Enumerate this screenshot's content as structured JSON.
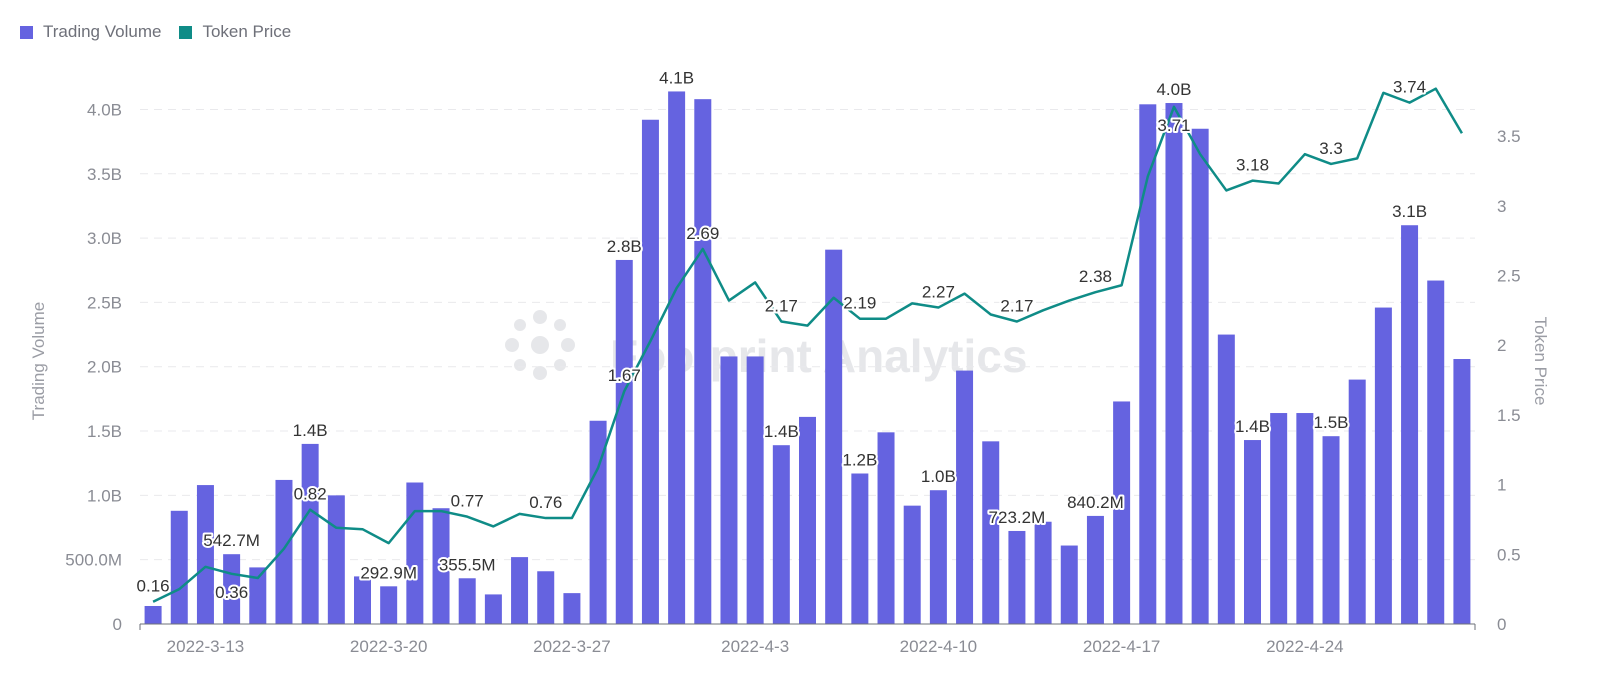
{
  "legend": [
    {
      "label": "Trading Volume",
      "color": "#6563e0"
    },
    {
      "label": "Token Price",
      "color": "#0f8c87"
    }
  ],
  "watermark": "Footprint Analytics",
  "chart_data": {
    "type": "bar+line",
    "x_tick_labels": [
      "2022-3-13",
      "2022-3-20",
      "2022-3-27",
      "2022-4-3",
      "2022-4-10",
      "2022-4-17",
      "2022-4-24"
    ],
    "categories": [
      "2022-3-11",
      "2022-3-12",
      "2022-3-13",
      "2022-3-14",
      "2022-3-15",
      "2022-3-16",
      "2022-3-17",
      "2022-3-18",
      "2022-3-19",
      "2022-3-20",
      "2022-3-21",
      "2022-3-22",
      "2022-3-23",
      "2022-3-24",
      "2022-3-25",
      "2022-3-26",
      "2022-3-27",
      "2022-3-28",
      "2022-3-29",
      "2022-3-30",
      "2022-3-31",
      "2022-4-1",
      "2022-4-2",
      "2022-4-3",
      "2022-4-4",
      "2022-4-5",
      "2022-4-6",
      "2022-4-7",
      "2022-4-8",
      "2022-4-9",
      "2022-4-10",
      "2022-4-11",
      "2022-4-12",
      "2022-4-13",
      "2022-4-14",
      "2022-4-15",
      "2022-4-16",
      "2022-4-17",
      "2022-4-18",
      "2022-4-19",
      "2022-4-20",
      "2022-4-21",
      "2022-4-22",
      "2022-4-23",
      "2022-4-24",
      "2022-4-25",
      "2022-4-26",
      "2022-4-27",
      "2022-4-28",
      "2022-4-29",
      "2022-4-30"
    ],
    "series": [
      {
        "name": "Trading Volume",
        "type": "bar",
        "axis": "left",
        "color": "#6563e0",
        "values": [
          140000000.0,
          880000000.0,
          1080000000.0,
          542700000.0,
          440000000.0,
          1120000000.0,
          1400000000.0,
          1000000000.0,
          370000000.0,
          292900000.0,
          1100000000.0,
          900000000.0,
          355500000.0,
          230000000.0,
          520000000.0,
          410000000.0,
          240000000.0,
          1580000000.0,
          2830000000.0,
          3920000000.0,
          4140000000.0,
          4080000000.0,
          2080000000.0,
          2080000000.0,
          1390000000.0,
          1610000000.0,
          2910000000.0,
          1170000000.0,
          1490000000.0,
          920000000.0,
          1040000000.0,
          1970000000.0,
          1420000000.0,
          723200000.0,
          795000000.0,
          610000000.0,
          840200000.0,
          1730000000.0,
          4040000000.0,
          4050000000.0,
          3850000000.0,
          2250000000.0,
          1430000000.0,
          1640000000.0,
          1640000000.0,
          1460000000.0,
          1900000000.0,
          2460000000.0,
          3100000000.0,
          2670000000.0,
          2060000000.0
        ],
        "data_labels": [
          null,
          null,
          null,
          "542.7M",
          null,
          null,
          "1.4B",
          null,
          null,
          "292.9M",
          null,
          null,
          "355.5M",
          null,
          null,
          null,
          null,
          null,
          "2.8B",
          null,
          "4.1B",
          null,
          null,
          null,
          "1.4B",
          null,
          null,
          "1.2B",
          null,
          null,
          "1.0B",
          null,
          null,
          "723.2M",
          null,
          null,
          "840.2M",
          null,
          null,
          "4.0B",
          null,
          null,
          "1.4B",
          null,
          null,
          "1.5B",
          null,
          null,
          "3.1B",
          null,
          null
        ]
      },
      {
        "name": "Token Price",
        "type": "line",
        "axis": "right",
        "color": "#0f8c87",
        "values": [
          0.16,
          0.25,
          0.41,
          0.36,
          0.33,
          0.54,
          0.82,
          0.69,
          0.68,
          0.58,
          0.81,
          0.81,
          0.77,
          0.7,
          0.79,
          0.76,
          0.76,
          1.12,
          1.67,
          2.03,
          2.41,
          2.69,
          2.32,
          2.45,
          2.17,
          2.14,
          2.34,
          2.19,
          2.19,
          2.3,
          2.27,
          2.37,
          2.22,
          2.17,
          2.25,
          2.32,
          2.38,
          2.43,
          3.21,
          3.71,
          3.37,
          3.11,
          3.18,
          3.16,
          3.37,
          3.3,
          3.34,
          3.81,
          3.74,
          3.84,
          3.52
        ],
        "data_labels": [
          "0.16",
          null,
          null,
          "0.36",
          null,
          null,
          "0.82",
          null,
          null,
          null,
          null,
          null,
          "0.77",
          null,
          null,
          "0.76",
          null,
          null,
          "1.67",
          null,
          null,
          "2.69",
          null,
          null,
          "2.17",
          null,
          null,
          "2.19",
          null,
          null,
          "2.27",
          null,
          null,
          "2.17",
          null,
          null,
          "2.38",
          null,
          null,
          "3.71",
          null,
          null,
          "3.18",
          null,
          null,
          "3.3",
          null,
          null,
          "3.74",
          null,
          null
        ]
      }
    ],
    "y_left": {
      "label": "Trading Volume",
      "range": [
        0,
        4400000000.0
      ],
      "ticks": [
        0,
        500000000.0,
        1000000000.0,
        1500000000.0,
        2000000000.0,
        2500000000.0,
        3000000000.0,
        3500000000.0,
        4000000000.0
      ],
      "tick_labels": [
        "0",
        "500.0M",
        "1.0B",
        "1.5B",
        "2.0B",
        "2.5B",
        "3.0B",
        "3.5B",
        "4.0B"
      ]
    },
    "y_right": {
      "label": "Token Price",
      "range": [
        0,
        4.06
      ],
      "ticks": [
        0,
        0.5,
        1,
        1.5,
        2,
        2.5,
        3,
        3.5
      ],
      "tick_labels": [
        "0",
        "0.5",
        "1",
        "1.5",
        "2",
        "2.5",
        "3",
        "3.5"
      ]
    },
    "grid": true,
    "legend_position": "top-left"
  }
}
